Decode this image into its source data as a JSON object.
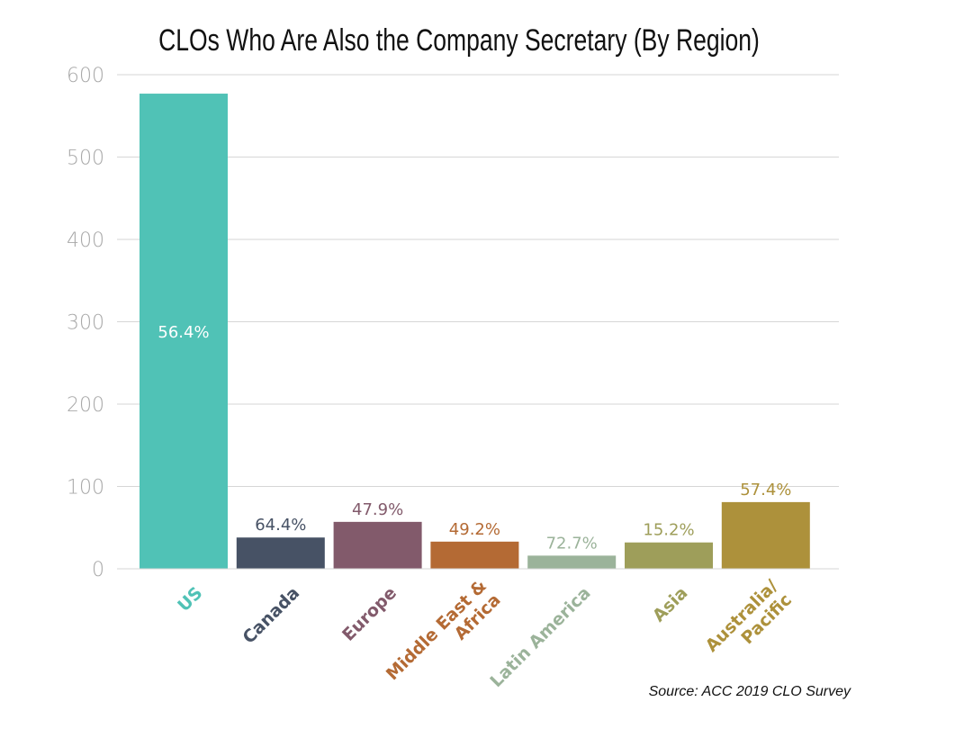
{
  "chart_data": {
    "type": "bar",
    "title": "CLOs Who Are Also the Company Secretary (By Region)",
    "categories": [
      "US",
      "Canada",
      "Europe",
      "Middle East & Africa",
      "Latin America",
      "Asia",
      "Australia/ Pacific"
    ],
    "category_lines": [
      [
        "US"
      ],
      [
        "Canada"
      ],
      [
        "Europe"
      ],
      [
        "Middle East &",
        "Africa"
      ],
      [
        "Latin America"
      ],
      [
        "Asia"
      ],
      [
        "Australia/",
        "Pacific"
      ]
    ],
    "values": [
      577,
      38,
      57,
      33,
      16,
      32,
      81
    ],
    "data_labels": [
      "56.4%",
      "64.4%",
      "47.9%",
      "49.2%",
      "72.7%",
      "15.2%",
      "57.4%"
    ],
    "colors": [
      "#50c2b6",
      "#475265",
      "#825a6b",
      "#b46a34",
      "#9bb39a",
      "#9e9e5a",
      "#ad913b"
    ],
    "ylim": [
      0,
      600
    ],
    "yticks": [
      0,
      100,
      200,
      300,
      400,
      500,
      600
    ],
    "grid": true,
    "xlabel": "",
    "ylabel": ""
  },
  "source": "Source: ACC 2019 CLO Survey"
}
